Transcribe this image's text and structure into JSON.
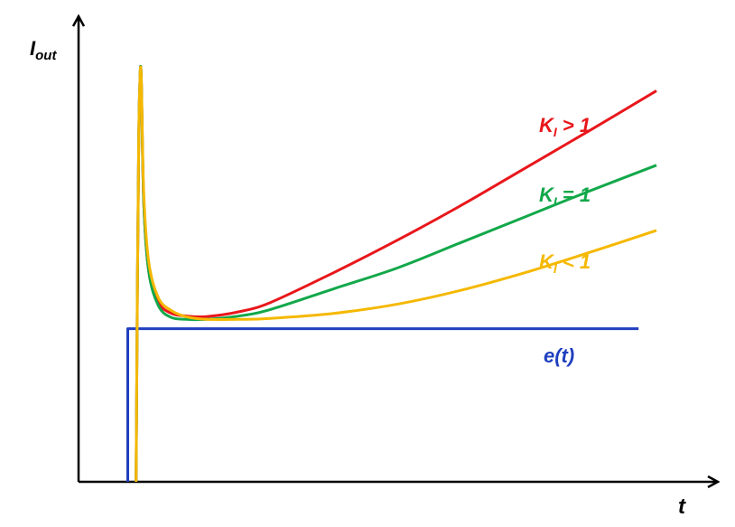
{
  "chart_data": {
    "type": "line",
    "title": "",
    "xlabel": "t",
    "ylabel": {
      "main": "I",
      "sub": "out"
    },
    "grid": false,
    "legend": "inline-right",
    "xlim": [
      0,
      100
    ],
    "ylim": [
      0,
      100
    ],
    "series": [
      {
        "name": "e(t)",
        "label_text": {
          "main": "e(t)",
          "sub": "",
          "rest": ""
        },
        "color": "#1f3fbf",
        "x": [
          7.7,
          7.7,
          8.3,
          87.6
        ],
        "y": [
          0,
          32.9,
          32.9,
          32.9
        ]
      },
      {
        "name": "K_I > 1",
        "label_text": {
          "main": "K",
          "sub": "I",
          "rest": " > 1"
        },
        "color": "#e8171b",
        "x": [
          9.0,
          9.2,
          9.4,
          9.6,
          9.8,
          10.2,
          11.0,
          12.5,
          14.5,
          17.0,
          20.0,
          25.0,
          30.0,
          40.0,
          50.0,
          60.0,
          70.0,
          80.0,
          90.4
        ],
        "y": [
          0,
          40,
          72,
          86,
          87,
          60,
          45,
          38.5,
          36.2,
          35.6,
          35.5,
          36.5,
          38.5,
          45.0,
          52.0,
          59.5,
          67.5,
          75.5,
          84.0
        ]
      },
      {
        "name": "K_I = 1",
        "label_text": {
          "main": "K",
          "sub": "I",
          "rest": " = 1"
        },
        "color": "#12a84a",
        "x": [
          9.0,
          9.2,
          9.4,
          9.6,
          9.8,
          10.2,
          11.0,
          12.5,
          14.5,
          17.0,
          20.0,
          25.0,
          30.0,
          40.0,
          50.0,
          60.0,
          70.0,
          80.0,
          90.4
        ],
        "y": [
          0,
          40,
          72,
          86,
          87,
          60,
          45,
          37.8,
          35.3,
          34.9,
          34.9,
          35.6,
          37.0,
          41.5,
          46.0,
          51.5,
          57.0,
          62.5,
          68.0
        ]
      },
      {
        "name": "K_I < 1",
        "label_text": {
          "main": "K",
          "sub": "I",
          "rest": " < 1"
        },
        "color": "#f5b800",
        "x": [
          9.0,
          9.2,
          9.4,
          9.6,
          9.8,
          10.2,
          11.0,
          12.5,
          14.5,
          17.0,
          20.0,
          25.0,
          30.0,
          40.0,
          50.0,
          60.0,
          70.0,
          80.0,
          90.4
        ],
        "y": [
          0,
          40,
          72,
          86,
          87,
          62,
          47,
          39.5,
          36.8,
          35.4,
          34.9,
          34.9,
          35.1,
          36.2,
          38.2,
          41.2,
          45.0,
          49.3,
          54.0
        ]
      }
    ]
  }
}
